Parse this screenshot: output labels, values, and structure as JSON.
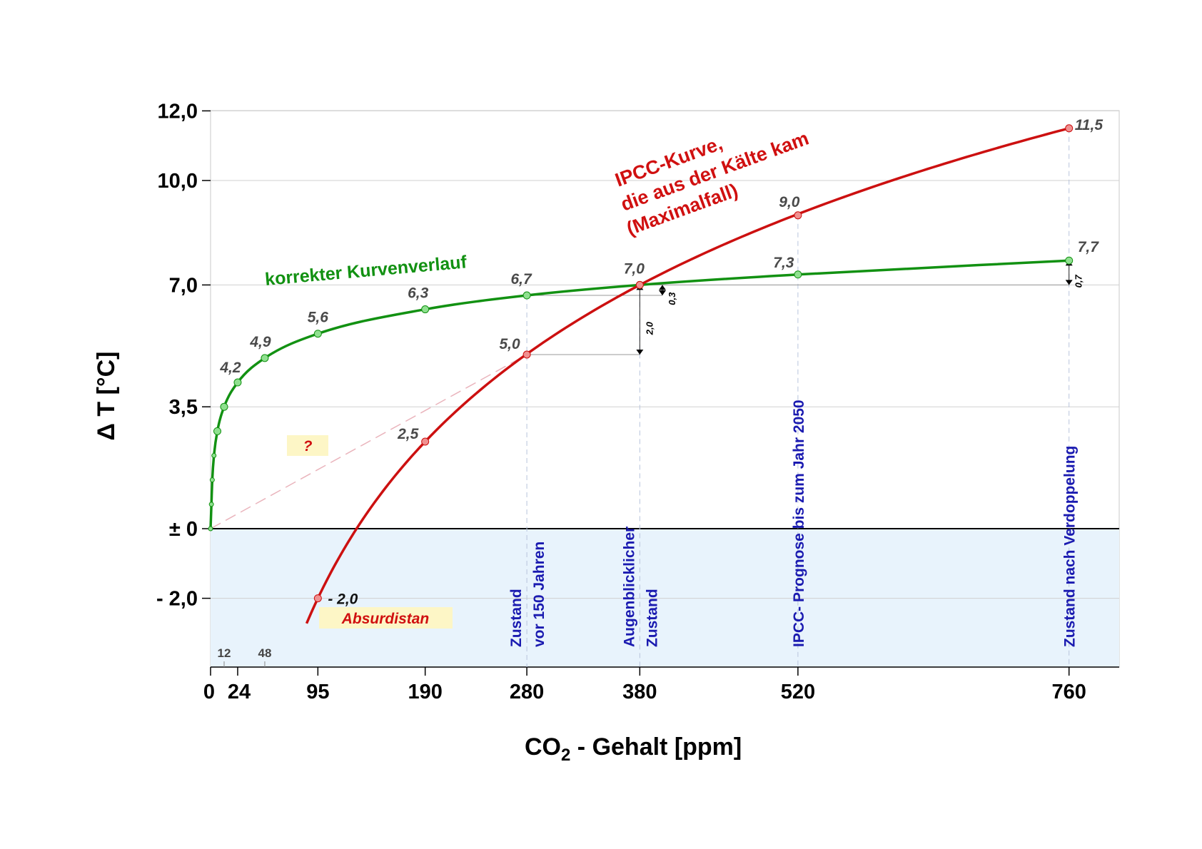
{
  "colors": {
    "correct_curve": "#129112",
    "ipcc_curve": "#cc1010",
    "negative_area": "#e8f3fc",
    "vertical_labels": "#1a1ab0",
    "annotation_box": "#fdf6c6"
  },
  "chart_data": {
    "type": "line",
    "xlabel_main": "CO",
    "xlabel_sub": "2",
    "xlabel_rest": " - Gehalt [ppm]",
    "ylabel": "Δ T [°C]",
    "xlim": [
      0,
      790
    ],
    "ylim": [
      -3.9,
      12.0
    ],
    "x_ticks": [
      {
        "value": 0,
        "label": "0"
      },
      {
        "value": 24,
        "label": "24"
      },
      {
        "value": 95,
        "label": "95"
      },
      {
        "value": 190,
        "label": "190"
      },
      {
        "value": 280,
        "label": "280"
      },
      {
        "value": 380,
        "label": "380"
      },
      {
        "value": 520,
        "label": "520"
      },
      {
        "value": 760,
        "label": "760"
      }
    ],
    "x_minor_ticks": [
      {
        "value": 12,
        "label": "12"
      },
      {
        "value": 48,
        "label": "48"
      }
    ],
    "y_ticks": [
      {
        "value": 12.0,
        "label": "12,0"
      },
      {
        "value": 10.0,
        "label": "10,0"
      },
      {
        "value": 7.0,
        "label": "7,0"
      },
      {
        "value": 3.5,
        "label": "3,5"
      },
      {
        "value": 0.0,
        "label": "± 0"
      },
      {
        "value": -2.0,
        "label": "- 2,0"
      }
    ],
    "series": [
      {
        "name": "korrekter Kurvenverlauf",
        "points": [
          {
            "x": 0,
            "y": 0.0
          },
          {
            "x": 0.75,
            "y": 0.7
          },
          {
            "x": 1.5,
            "y": 1.4
          },
          {
            "x": 3,
            "y": 2.1
          },
          {
            "x": 6,
            "y": 2.8
          },
          {
            "x": 12,
            "y": 3.5
          },
          {
            "x": 24,
            "y": 4.2
          },
          {
            "x": 48,
            "y": 4.9
          },
          {
            "x": 95,
            "y": 5.6
          },
          {
            "x": 190,
            "y": 6.3
          },
          {
            "x": 280,
            "y": 6.7
          },
          {
            "x": 380,
            "y": 7.0
          },
          {
            "x": 520,
            "y": 7.3
          },
          {
            "x": 760,
            "y": 7.7
          }
        ],
        "labels": [
          {
            "x": 24,
            "text": "4,2"
          },
          {
            "x": 48,
            "text": "4,9"
          },
          {
            "x": 95,
            "text": "5,6"
          },
          {
            "x": 190,
            "text": "6,3"
          },
          {
            "x": 280,
            "text": "6,7"
          },
          {
            "x": 380,
            "text": "7,0"
          },
          {
            "x": 520,
            "text": "7,3"
          },
          {
            "x": 760,
            "text": "7,7"
          }
        ]
      },
      {
        "name": "IPCC-Kurve",
        "points": [
          {
            "x": 95,
            "y": -2.0
          },
          {
            "x": 190,
            "y": 2.5
          },
          {
            "x": 280,
            "y": 5.0
          },
          {
            "x": 380,
            "y": 7.0
          },
          {
            "x": 520,
            "y": 9.0
          },
          {
            "x": 760,
            "y": 11.5
          }
        ],
        "labels": [
          {
            "x": 95,
            "text": "- 2,0"
          },
          {
            "x": 190,
            "text": "2,5"
          },
          {
            "x": 280,
            "text": "5,0"
          },
          {
            "x": 520,
            "text": "9,0"
          },
          {
            "x": 760,
            "text": "11,5"
          }
        ]
      }
    ],
    "curve_titles": {
      "green": "korrekter Kurvenverlauf",
      "red_lines": [
        "IPCC-Kurve,",
        "die aus der Kälte kam",
        "(Maximalfall)"
      ]
    },
    "vertical_markers": [
      {
        "x": 280,
        "lines": [
          "Zustand",
          "vor 150 Jahren"
        ]
      },
      {
        "x": 380,
        "lines": [
          "Augenblicklicher",
          "Zustand"
        ]
      },
      {
        "x": 520,
        "lines": [
          "IPCC- Prognose bis zum Jahr 2050"
        ]
      },
      {
        "x": 760,
        "lines": [
          "Zustand nach Verdoppelung"
        ]
      }
    ],
    "differences": [
      {
        "x": 380,
        "from": 5.0,
        "to": 7.0,
        "label": "2,0"
      },
      {
        "x": 400,
        "from": 6.7,
        "to": 7.0,
        "label": "0,3"
      },
      {
        "x": 760,
        "from": 7.0,
        "to": 7.7,
        "label": "0,7"
      }
    ],
    "annotations": {
      "question": "?",
      "absurdistan": "Absurdistan"
    }
  }
}
